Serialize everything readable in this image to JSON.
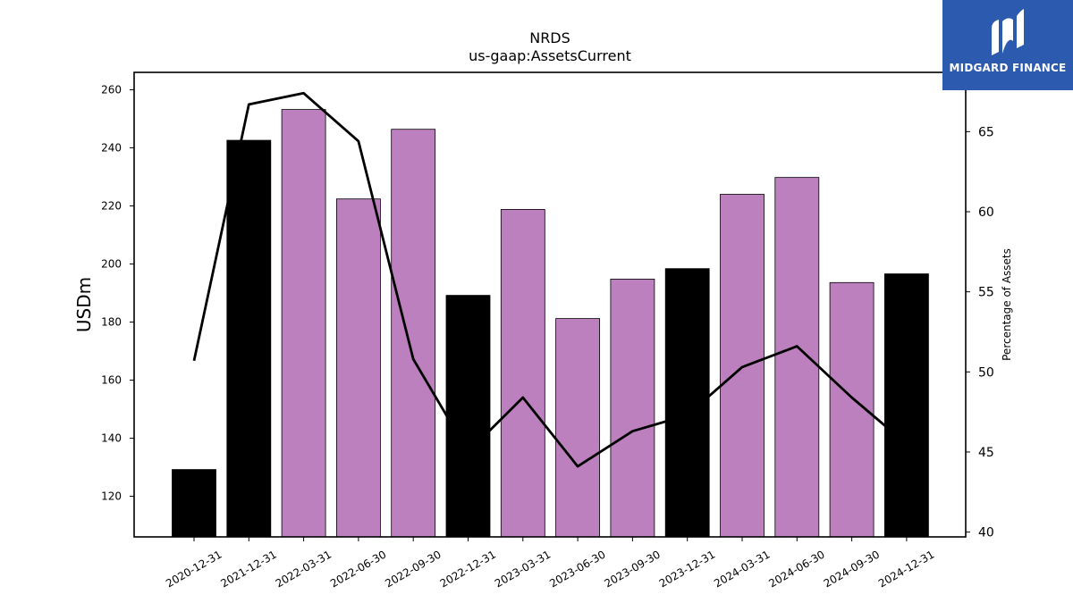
{
  "brand": {
    "name": "MIDGARD FINANCE",
    "background": "#2b5aae"
  },
  "chart_data": {
    "type": "bar",
    "title": "NRDS",
    "subtitle": "us-gaap:AssetsCurrent",
    "ylabel": "USDm",
    "y2label": "Percentage of Assets",
    "ylim": [
      106,
      266
    ],
    "y2lim": [
      39.7,
      68.7
    ],
    "yticks": [
      120,
      140,
      160,
      180,
      200,
      220,
      240,
      260
    ],
    "y2ticks": [
      40,
      45,
      50,
      55,
      60,
      65
    ],
    "categories": [
      "2020-12-31",
      "2021-12-31",
      "2022-03-31",
      "2022-06-30",
      "2022-09-30",
      "2022-12-31",
      "2023-03-31",
      "2023-06-30",
      "2023-09-30",
      "2023-12-31",
      "2024-03-31",
      "2024-06-30",
      "2024-09-30",
      "2024-12-31"
    ],
    "series": [
      {
        "type": "bar",
        "values": [
          129.2,
          242.6,
          253.2,
          222.4,
          246.4,
          189.2,
          218.8,
          181.2,
          194.8,
          198.4,
          224.0,
          229.8,
          193.6,
          196.6
        ],
        "colors": [
          "#000000",
          "#000000",
          "#bb80bd",
          "#bb80bd",
          "#bb80bd",
          "#000000",
          "#bb80bd",
          "#bb80bd",
          "#bb80bd",
          "#000000",
          "#bb80bd",
          "#bb80bd",
          "#bb80bd",
          "#000000"
        ]
      },
      {
        "type": "line",
        "axis": "right",
        "color": "#000000",
        "values": [
          50.7,
          66.7,
          67.4,
          64.4,
          50.8,
          45.0,
          48.4,
          44.1,
          46.3,
          47.3,
          50.3,
          51.6,
          48.4,
          45.5
        ]
      }
    ],
    "grid": false,
    "legend": "none"
  }
}
